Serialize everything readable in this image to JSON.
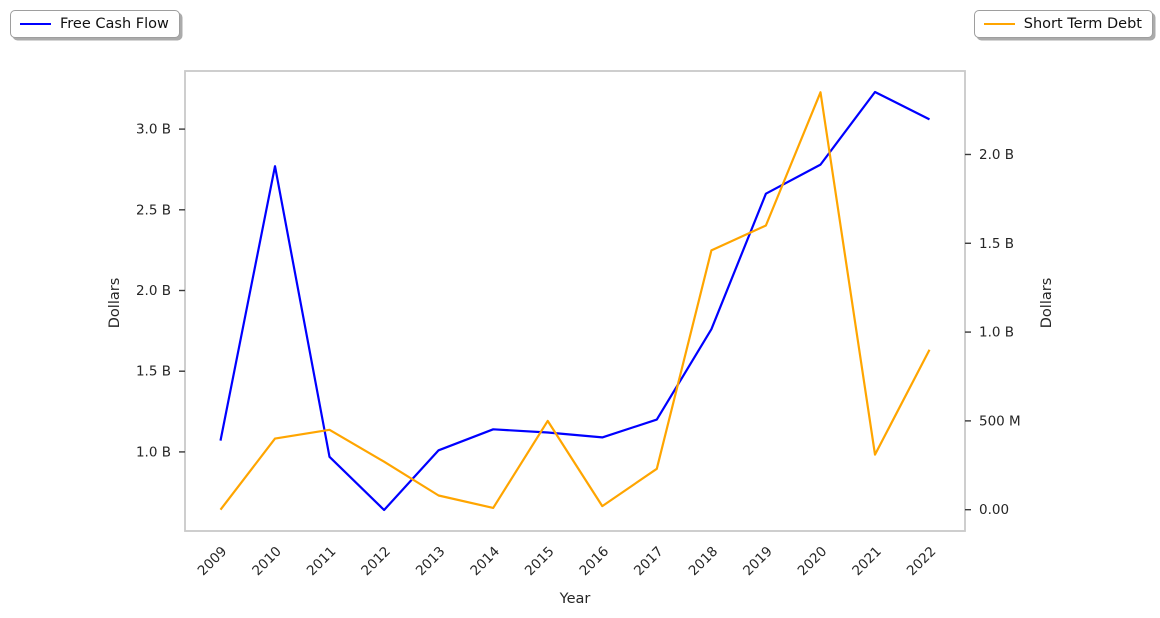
{
  "legends": {
    "left_label": "Free Cash Flow",
    "right_label": "Short Term Debt"
  },
  "chart_data": {
    "type": "line",
    "title": "",
    "xlabel": "Year",
    "ylabel_left": "Dollars",
    "ylabel_right": "Dollars",
    "x": [
      2009,
      2010,
      2011,
      2012,
      2013,
      2014,
      2015,
      2016,
      2017,
      2018,
      2019,
      2020,
      2021,
      2022
    ],
    "x_tick_labels": [
      "2009",
      "2010",
      "2011",
      "2012",
      "2013",
      "2014",
      "2015",
      "2016",
      "2017",
      "2018",
      "2019",
      "2020",
      "2021",
      "2022"
    ],
    "series": [
      {
        "name": "Free Cash Flow",
        "axis": "left",
        "color": "#0000ff",
        "units": "billions of dollars",
        "values_billions": [
          1.07,
          2.77,
          0.97,
          0.64,
          1.01,
          1.14,
          1.12,
          1.09,
          1.2,
          1.76,
          2.6,
          2.78,
          3.23,
          3.06
        ]
      },
      {
        "name": "Short Term Debt",
        "axis": "right",
        "color": "#ffa500",
        "units": "billions of dollars",
        "values_billions": [
          0.0,
          0.4,
          0.45,
          0.27,
          0.08,
          0.01,
          0.5,
          0.02,
          0.23,
          1.46,
          1.6,
          2.35,
          0.31,
          0.9
        ]
      }
    ],
    "left_axis": {
      "ylim": [
        0.51,
        3.36
      ],
      "ticks": [
        {
          "value": 1.0,
          "label": "1.0 B"
        },
        {
          "value": 1.5,
          "label": "1.5 B"
        },
        {
          "value": 2.0,
          "label": "2.0 B"
        },
        {
          "value": 2.5,
          "label": "2.5 B"
        },
        {
          "value": 3.0,
          "label": "3.0 B"
        }
      ]
    },
    "right_axis": {
      "ylim": [
        -0.12,
        2.47
      ],
      "ticks": [
        {
          "value": 0.0,
          "label": "0.00"
        },
        {
          "value": 0.5,
          "label": "500 M"
        },
        {
          "value": 1.0,
          "label": "1.0 B"
        },
        {
          "value": 1.5,
          "label": "1.5 B"
        },
        {
          "value": 2.0,
          "label": "2.0 B"
        }
      ]
    },
    "grid": false,
    "x_tick_rotation_degrees": 45,
    "legend_position": {
      "Free Cash Flow": "outside upper-left",
      "Short Term Debt": "outside upper-right"
    }
  }
}
